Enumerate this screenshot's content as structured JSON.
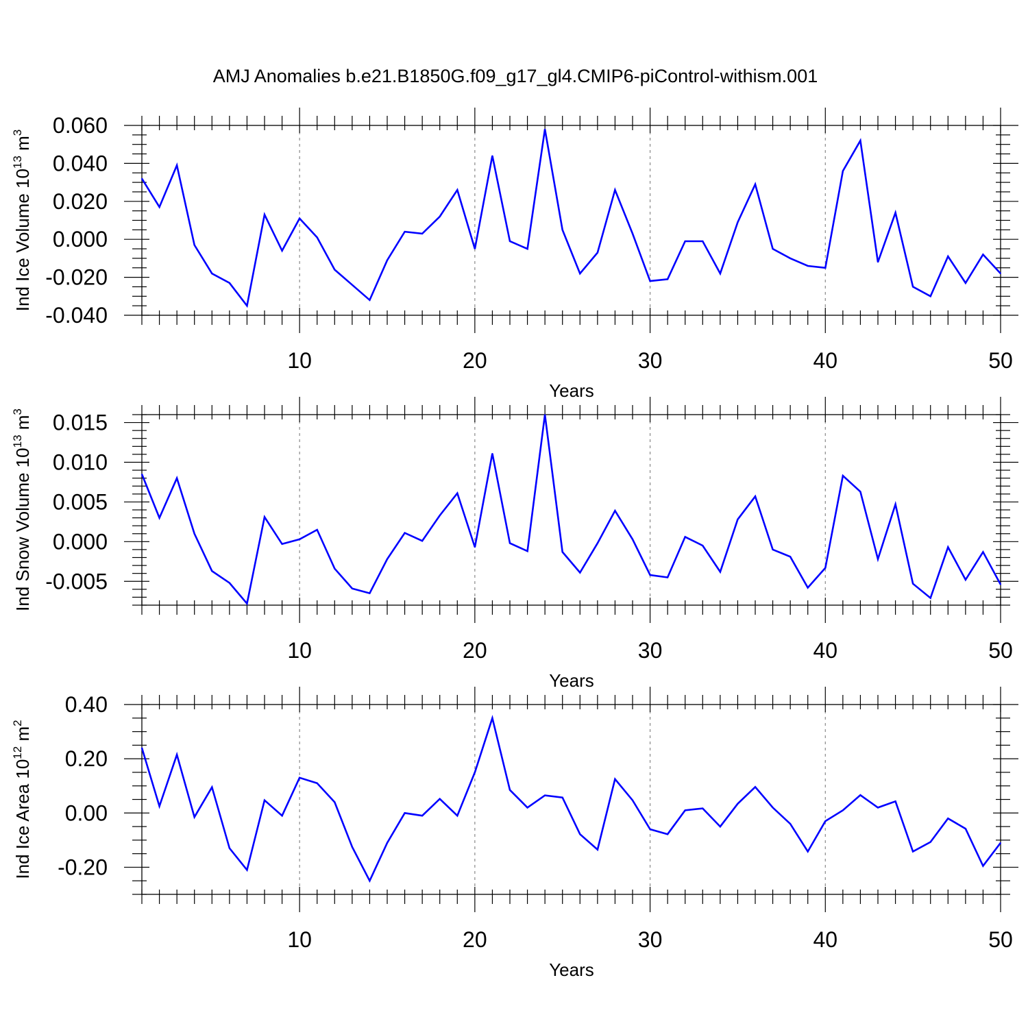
{
  "chart_data": {
    "title": "AMJ Anomalies b.e21.B1850G.f09_g17_gl4.CMIP6-piControl-withism.001",
    "color": "#0000ff",
    "panels": [
      {
        "type": "line",
        "ylabel_prefix": "Ind Ice Volume 10",
        "ylabel_exp": "13",
        "ylabel_unit": " m",
        "ylabel_unit_exp": "3",
        "xlabel": "Years",
        "xlim": [
          1,
          50
        ],
        "ylim": [
          -0.04,
          0.06
        ],
        "yticks": [
          -0.04,
          -0.02,
          0.0,
          0.02,
          0.04,
          0.06
        ],
        "yticklabels": [
          "-0.040",
          "-0.020",
          "0.000",
          "0.020",
          "0.040",
          "0.060"
        ],
        "yminor_step": 0.005,
        "xticks": [
          10,
          20,
          30,
          40,
          50
        ],
        "xticklabels": [
          "10",
          "20",
          "30",
          "40",
          "50"
        ],
        "x": [
          1,
          2,
          3,
          4,
          5,
          6,
          7,
          8,
          9,
          10,
          11,
          12,
          13,
          14,
          15,
          16,
          17,
          18,
          19,
          20,
          21,
          22,
          23,
          24,
          25,
          26,
          27,
          28,
          29,
          30,
          31,
          32,
          33,
          34,
          35,
          36,
          37,
          38,
          39,
          40,
          41,
          42,
          43,
          44,
          45,
          46,
          47,
          48,
          49,
          50
        ],
        "y": [
          0.032,
          0.017,
          0.039,
          -0.003,
          -0.018,
          -0.023,
          -0.035,
          0.013,
          -0.006,
          0.011,
          0.001,
          -0.016,
          -0.024,
          -0.032,
          -0.011,
          0.004,
          0.003,
          0.012,
          0.026,
          -0.005,
          0.044,
          -0.001,
          -0.005,
          0.058,
          0.005,
          -0.018,
          -0.007,
          0.026,
          0.003,
          -0.022,
          -0.021,
          -0.001,
          -0.001,
          -0.018,
          0.009,
          0.029,
          -0.005,
          -0.01,
          -0.014,
          -0.015,
          0.036,
          0.052,
          -0.012,
          0.014,
          -0.025,
          -0.03,
          -0.009,
          -0.023,
          -0.008,
          -0.018
        ]
      },
      {
        "type": "line",
        "ylabel_prefix": "Ind Snow Volume 10",
        "ylabel_exp": "13",
        "ylabel_unit": " m",
        "ylabel_unit_exp": "3",
        "xlabel": "Years",
        "xlim": [
          1,
          50
        ],
        "ylim": [
          -0.008,
          0.016
        ],
        "yticks": [
          -0.005,
          0.0,
          0.005,
          0.01,
          0.015
        ],
        "yticklabels": [
          "-0.005",
          "0.000",
          "0.005",
          "0.010",
          "0.015"
        ],
        "yminor_step": 0.001,
        "xticks": [
          10,
          20,
          30,
          40,
          50
        ],
        "xticklabels": [
          "10",
          "20",
          "30",
          "40",
          "50"
        ],
        "x": [
          1,
          2,
          3,
          4,
          5,
          6,
          7,
          8,
          9,
          10,
          11,
          12,
          13,
          14,
          15,
          16,
          17,
          18,
          19,
          20,
          21,
          22,
          23,
          24,
          25,
          26,
          27,
          28,
          29,
          30,
          31,
          32,
          33,
          34,
          35,
          36,
          37,
          38,
          39,
          40,
          41,
          42,
          43,
          44,
          45,
          46,
          47,
          48,
          49,
          50
        ],
        "y": [
          0.0085,
          0.003,
          0.008,
          0.001,
          -0.0037,
          -0.0052,
          -0.0078,
          0.0031,
          -0.0003,
          0.0003,
          0.0015,
          -0.0034,
          -0.0059,
          -0.0065,
          -0.0022,
          0.0011,
          0.0001,
          0.0033,
          0.0061,
          -0.0007,
          0.0111,
          -0.0002,
          -0.0012,
          0.016,
          -0.0013,
          -0.0039,
          -0.0002,
          0.0039,
          0.0003,
          -0.0042,
          -0.0045,
          0.0006,
          -0.0005,
          -0.0038,
          0.0028,
          0.0057,
          -0.001,
          -0.0019,
          -0.0058,
          -0.0033,
          0.0083,
          0.0063,
          -0.0022,
          0.0047,
          -0.0053,
          -0.0071,
          -0.0007,
          -0.0048,
          -0.0013,
          -0.0054
        ]
      },
      {
        "type": "line",
        "ylabel_prefix": "Ind Ice Area 10",
        "ylabel_exp": "12",
        "ylabel_unit": " m",
        "ylabel_unit_exp": "2",
        "xlabel": "Years",
        "xlim": [
          1,
          50
        ],
        "ylim": [
          -0.3,
          0.4
        ],
        "yticks": [
          -0.2,
          0.0,
          0.2,
          0.4
        ],
        "yticklabels": [
          "-0.20",
          "0.00",
          "0.20",
          "0.40"
        ],
        "yminor_step": 0.05,
        "xticks": [
          10,
          20,
          30,
          40,
          50
        ],
        "xticklabels": [
          "10",
          "20",
          "30",
          "40",
          "50"
        ],
        "x": [
          1,
          2,
          3,
          4,
          5,
          6,
          7,
          8,
          9,
          10,
          11,
          12,
          13,
          14,
          15,
          16,
          17,
          18,
          19,
          20,
          21,
          22,
          23,
          24,
          25,
          26,
          27,
          28,
          29,
          30,
          31,
          32,
          33,
          34,
          35,
          36,
          37,
          38,
          39,
          40,
          41,
          42,
          43,
          44,
          45,
          46,
          47,
          48,
          49,
          50
        ],
        "y": [
          0.24,
          0.025,
          0.215,
          -0.015,
          0.095,
          -0.13,
          -0.21,
          0.047,
          -0.01,
          0.13,
          0.11,
          0.04,
          -0.125,
          -0.25,
          -0.11,
          0.0,
          -0.01,
          0.052,
          -0.01,
          0.15,
          0.35,
          0.085,
          0.02,
          0.065,
          0.057,
          -0.078,
          -0.135,
          0.125,
          0.047,
          -0.06,
          -0.078,
          0.01,
          0.017,
          -0.05,
          0.034,
          0.096,
          0.02,
          -0.04,
          -0.142,
          -0.03,
          0.01,
          0.066,
          0.02,
          0.043,
          -0.142,
          -0.107,
          -0.02,
          -0.058,
          -0.195,
          -0.11
        ]
      }
    ]
  }
}
